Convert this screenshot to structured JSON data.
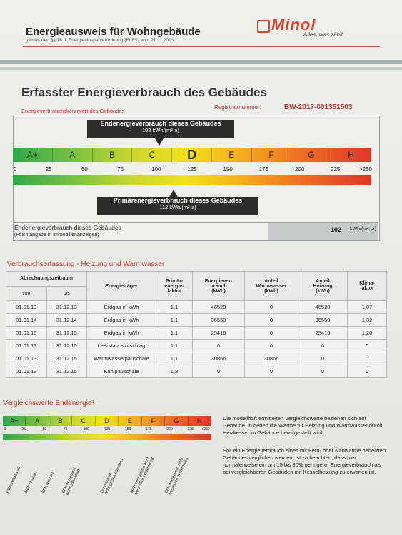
{
  "header": {
    "title": "Energieausweis für Wohngebäude",
    "subtitle": "gemäß den §§ 16 ff. Energieeinsparverordnung (EnEV) vom 21.11.2013",
    "logo": "Minol",
    "slogan": "Alles, was zählt."
  },
  "section1": {
    "title": "Erfasster Energieverbrauch des Gebäudes",
    "kennwert_label": "Energieverbrauchskennwert des Gebäudes",
    "reg_label": "Registriernummer:",
    "reg_value": "BW-2017-001351503"
  },
  "end_callout": {
    "title": "Endenergieverbrauch dieses Gebäudes",
    "value": "102 kWh/(m²·a)"
  },
  "prim_callout": {
    "title": "Primärenergieverbrauch dieses Gebäudes",
    "value": "112 kWh/(m²·a)"
  },
  "scale": {
    "classes": [
      "A+",
      "A",
      "B",
      "C",
      "D",
      "E",
      "F",
      "G",
      "H"
    ],
    "selected": "D",
    "ticks": [
      "0",
      "25",
      "50",
      "75",
      "100",
      "125",
      "150",
      "175",
      "200",
      "225",
      ">250"
    ],
    "end_value": 102,
    "prim_value": 112
  },
  "summary": {
    "label": "Endenergieverbrauch dieses Gebäudes",
    "note": "(Pflichtangabe in Immobilienanzeigen)",
    "value": "102",
    "unit": "kWh/(m²· a)"
  },
  "section2": {
    "title": "Verbrauchserfassung - Heizung und Warmwasser"
  },
  "table": {
    "h_period": "Abrechnungszeitraum",
    "h_von": "von",
    "h_bis": "bis",
    "h_carrier": "Energieträger",
    "h_factor": "Primär-\nenergie-\nfaktor",
    "h_consumption": "Energiever-\nbrauch\n(kWh)",
    "h_ww": "Anteil\nWarmwasser\n(kWh)",
    "h_heat": "Anteil\nHeizung\n(kWh)",
    "h_climate": "Klima-\nfaktor",
    "rows": [
      [
        "01.01.13",
        "31.12.13",
        "Erdgas in kWh",
        "1,1",
        "46528",
        "0",
        "46528",
        "1,07"
      ],
      [
        "01.01.14",
        "31.12.14",
        "Erdgas in kWh",
        "1,1",
        "35550",
        "0",
        "35550",
        "1,32"
      ],
      [
        "01.01.15",
        "31.12.15",
        "Erdgas in kWh",
        "1,1",
        "25416",
        "0",
        "25416",
        "1,20"
      ],
      [
        "01.01.13",
        "31.12.15",
        "Leerstandszuschlag",
        "1,1",
        "0",
        "0",
        "0",
        "0"
      ],
      [
        "01.01.13",
        "31.12.15",
        "Warmwasserpauschale",
        "1,1",
        "30866",
        "30866",
        "0",
        "0"
      ],
      [
        "01.01.13",
        "31.12.15",
        "Kühlpauschale",
        "1,8",
        "0",
        "0",
        "0",
        "0"
      ]
    ]
  },
  "section3": {
    "title": "Vergleichswerte Endenergie¹"
  },
  "scale2": {
    "classes": [
      "A+",
      "A",
      "B",
      "C",
      "D",
      "E",
      "F",
      "G",
      "H"
    ],
    "ticks": [
      "0",
      "25",
      "50",
      "75",
      "100",
      "125",
      "150",
      "175",
      "200",
      "225",
      ">250"
    ]
  },
  "refs": [
    "Effizienzhaus 40",
    "MFH Neubau",
    "EFH Neubau",
    "EFH energetisch\ngut modernisiert",
    "Durchschnitt\nWohngebäudebestand",
    "MFH energetisch nicht\nwesentlich modernisiert",
    "EFH energetisch nicht\nwesentlich modernisiert"
  ],
  "text1": "Die modellhaft ermittelten Vergleichswerte beziehen sich auf Gebäude, in denen die Wärme für Heizung und Warmwasser durch Heizkessel im Gebäude bereitgestellt wird.",
  "text2": "Soll ein Energieverbrauch eines mit Fern- oder Nahwärme beheizten Gebäudes verglichen werden, ist zu beachten, dass hier normalerweise ein um 15 bis 30% geringerer Energieverbrauch als bei vergleichbaren Gebäuden mit Kesselheizung zu erwarten ist.",
  "colors": {
    "accent_red": "#b2332b",
    "logo_red": "#d9412d",
    "callout": "#2d2d2d"
  }
}
